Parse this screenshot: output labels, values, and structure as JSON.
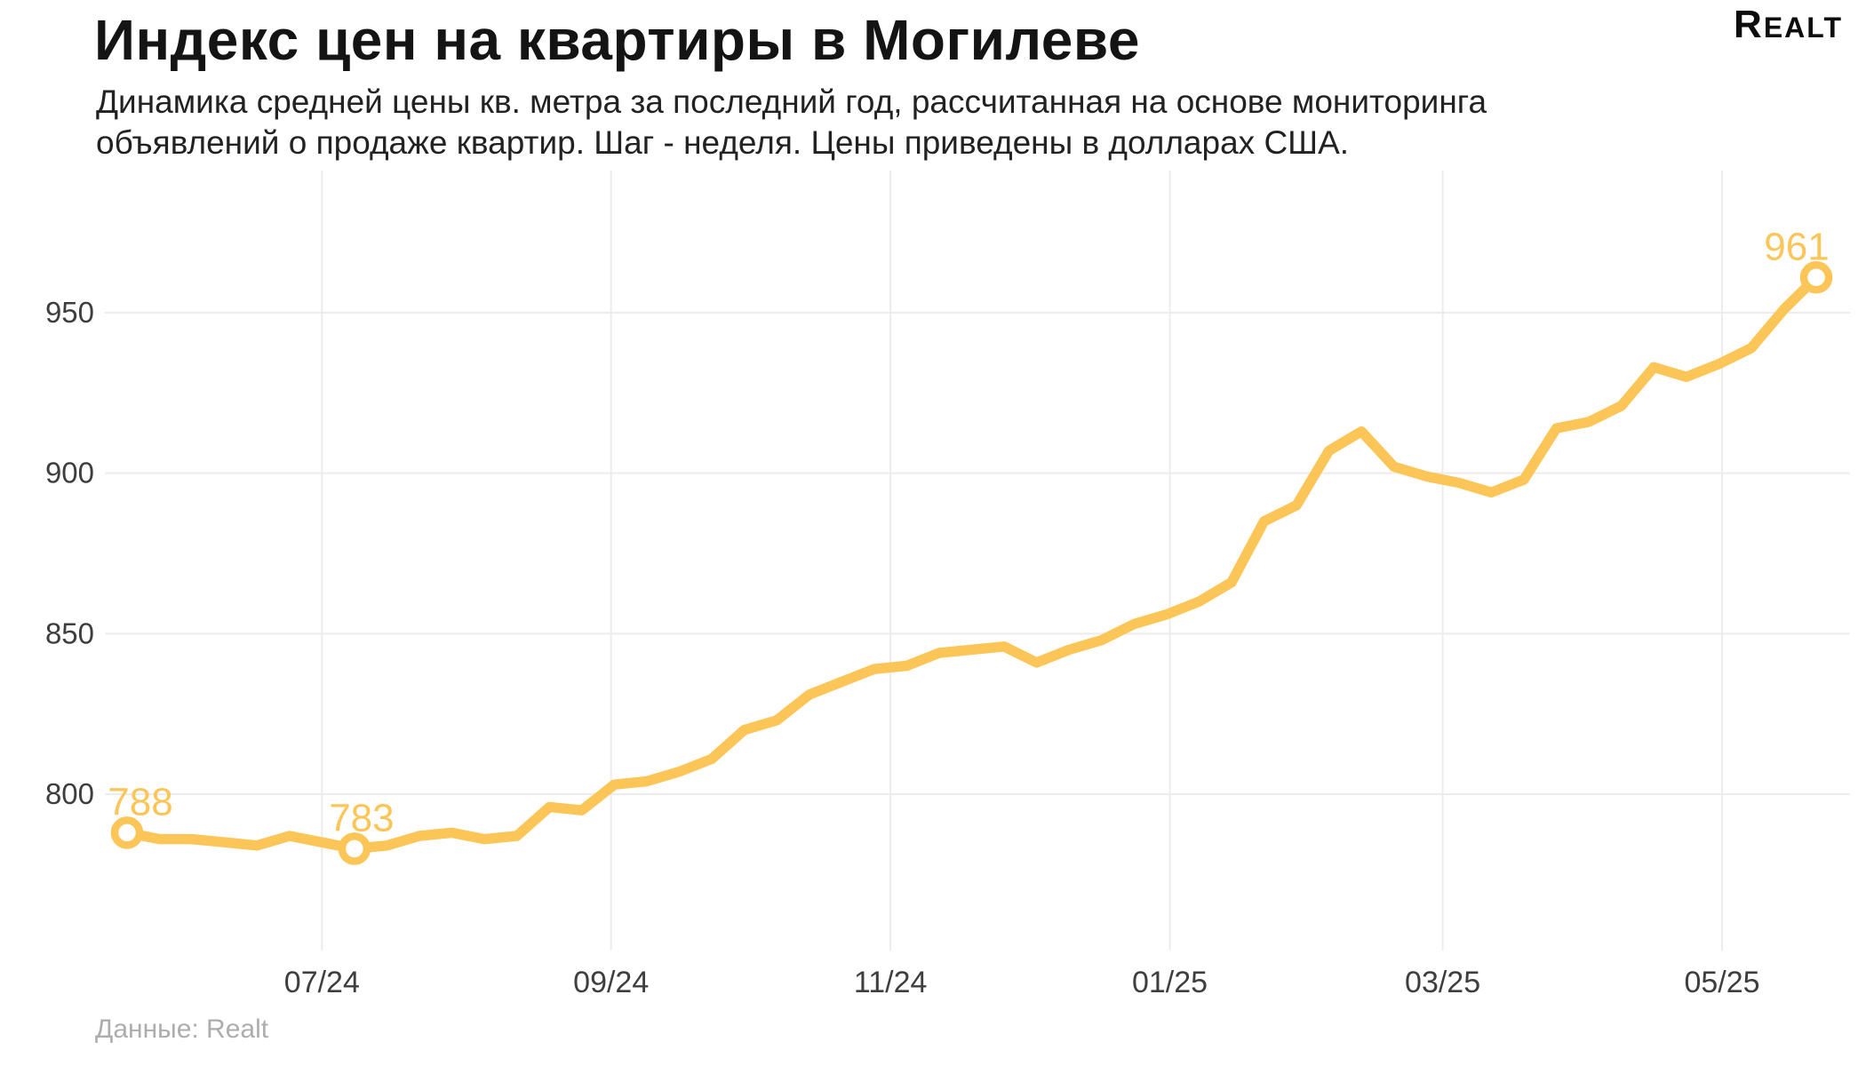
{
  "header": {
    "title": "Индекс цен на квартиры в Могилеве",
    "subtitle_line1": "Динамика средней цены кв. метра за последний год, рассчитанная на основе мониторинга",
    "subtitle_line2": "объявлений о продаже квартир. Шаг - неделя. Цены приведены в долларах США.",
    "logo_text": "Realt"
  },
  "footer": {
    "source_label": "Данные: Realt"
  },
  "chart_data": {
    "type": "line",
    "title": "Индекс цен на квартиры в Могилеве",
    "unit": "доллары США за кв. метр",
    "step": "неделя",
    "y_ticks": [
      950,
      900,
      850,
      800
    ],
    "x_tick_labels": [
      "07/24",
      "09/24",
      "11/24",
      "01/25",
      "03/25",
      "05/25"
    ],
    "x_tick_week_index": [
      6.0,
      14.9,
      23.5,
      32.1,
      40.5,
      49.1
    ],
    "values": [
      788,
      786,
      786,
      785,
      784,
      787,
      785,
      783,
      784,
      787,
      788,
      786,
      787,
      796,
      795,
      803,
      804,
      807,
      811,
      820,
      823,
      831,
      835,
      839,
      840,
      844,
      845,
      846,
      841,
      845,
      848,
      853,
      856,
      860,
      866,
      885,
      890,
      907,
      913,
      902,
      899,
      897,
      894,
      898,
      914,
      916,
      921,
      933,
      930,
      934,
      939,
      951,
      961
    ],
    "labeled_points": [
      {
        "index": 0,
        "value": 788,
        "label": "788"
      },
      {
        "index": 7,
        "value": 783,
        "label": "783"
      },
      {
        "index": 52,
        "value": 961,
        "label": "961"
      }
    ],
    "ylim": [
      769,
      1005
    ],
    "grid": true,
    "legend": "none",
    "line_color": "#FBC557",
    "label_color": "#FBC557",
    "grid_color": "#ECECEC",
    "tick_color": "#3E3E3E",
    "background": "#FFFFFF"
  }
}
